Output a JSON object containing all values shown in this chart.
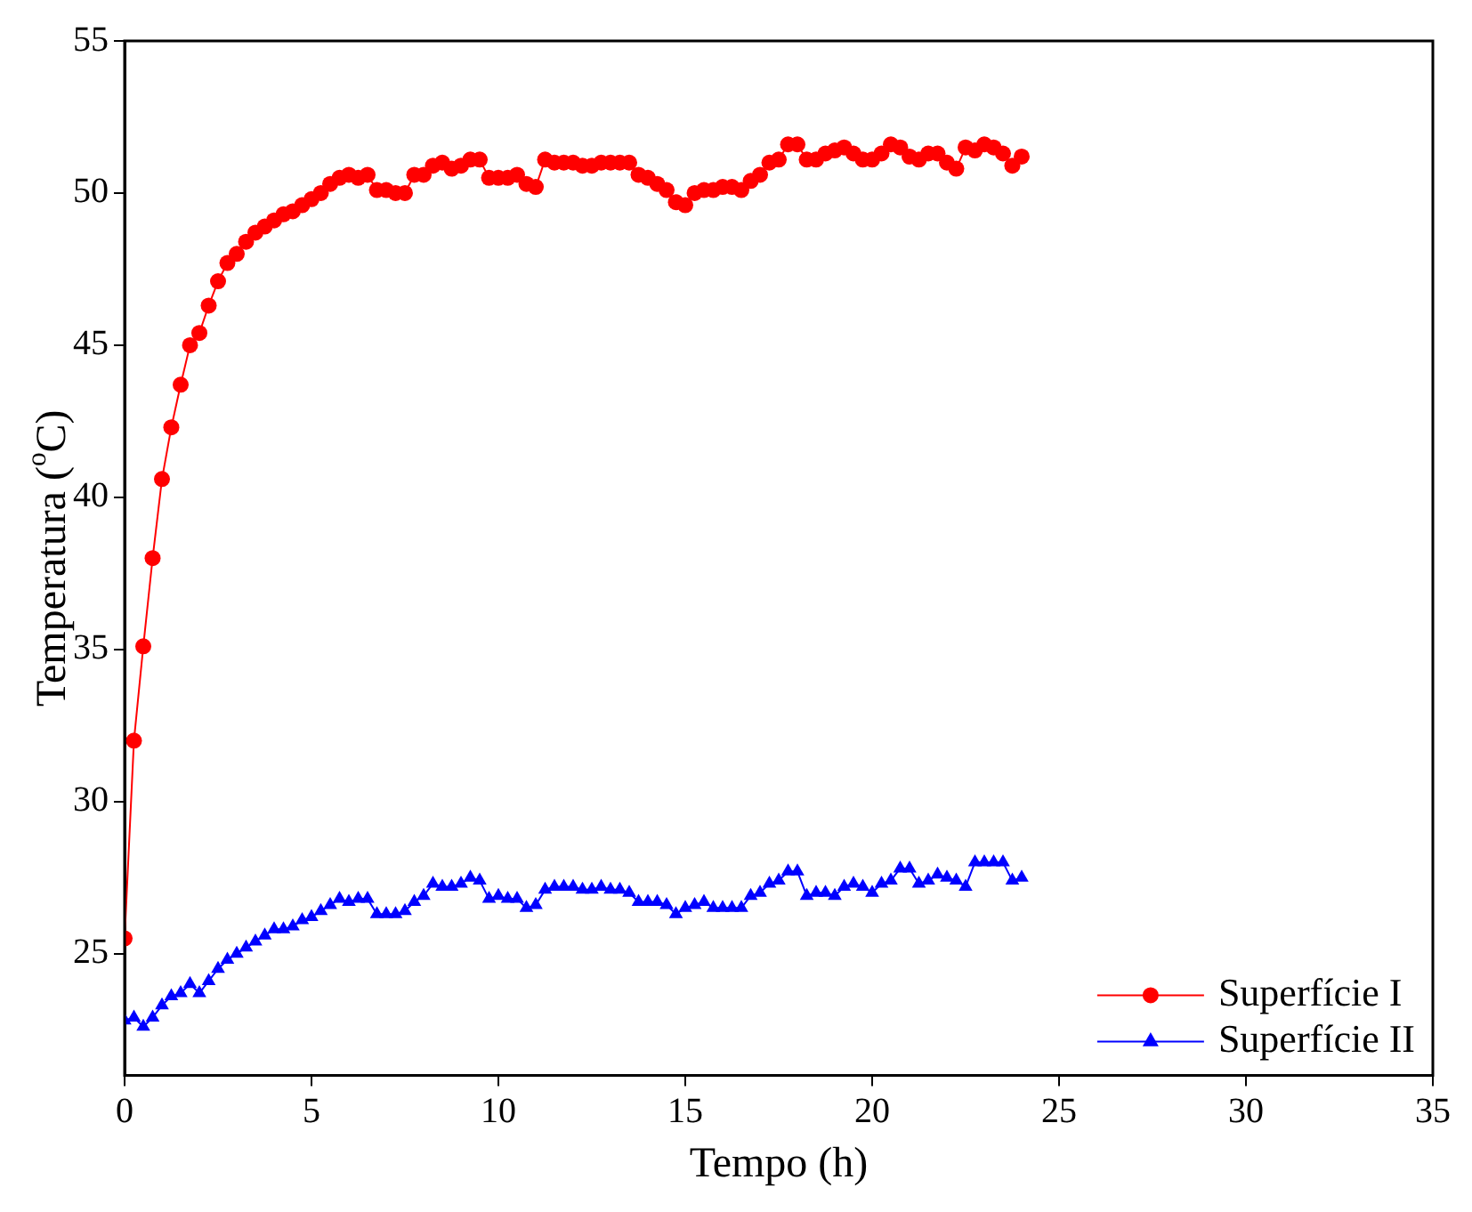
{
  "chart_data": {
    "type": "line",
    "xlabel": "Tempo (h)",
    "ylabel": "Temperatura ($^{o}$C)",
    "x": [
      0,
      0.25,
      0.5,
      0.75,
      1,
      1.25,
      1.5,
      1.75,
      2,
      2.25,
      2.5,
      2.75,
      3,
      3.25,
      3.5,
      3.75,
      4,
      4.25,
      4.5,
      4.75,
      5,
      5.25,
      5.5,
      5.75,
      6,
      6.25,
      6.5,
      6.75,
      7,
      7.25,
      7.5,
      7.75,
      8,
      8.25,
      8.5,
      8.75,
      9,
      9.25,
      9.5,
      9.75,
      10,
      10.25,
      10.5,
      10.75,
      11,
      11.25,
      11.5,
      11.75,
      12,
      12.25,
      12.5,
      12.75,
      13,
      13.25,
      13.5,
      13.75,
      14,
      14.25,
      14.5,
      14.75,
      15,
      15.25,
      15.5,
      15.75,
      16,
      16.25,
      16.5,
      16.75,
      17,
      17.25,
      17.5,
      17.75,
      18,
      18.25,
      18.5,
      18.75,
      19,
      19.25,
      19.5,
      19.75,
      20,
      20.25,
      20.5,
      20.75,
      21,
      21.25,
      21.5,
      21.75,
      22,
      22.25,
      22.5,
      22.75,
      23,
      23.25,
      23.5,
      23.75,
      24
    ],
    "series": [
      {
        "name": "Superfície I",
        "color": "#ff0000",
        "marker": "circle",
        "values": [
          25.5,
          32,
          35.1,
          38,
          40.6,
          42.3,
          43.7,
          45,
          45.4,
          46.3,
          47.1,
          47.7,
          48,
          48.4,
          48.7,
          48.9,
          49.1,
          49.3,
          49.4,
          49.6,
          49.8,
          50,
          50.3,
          50.5,
          50.6,
          50.5,
          50.6,
          50.1,
          50.1,
          50,
          50,
          50.6,
          50.6,
          50.9,
          51,
          50.8,
          50.9,
          51.1,
          51.1,
          50.5,
          50.5,
          50.5,
          50.6,
          50.3,
          50.2,
          51.1,
          51,
          51,
          51,
          50.9,
          50.9,
          51,
          51,
          51,
          51,
          50.6,
          50.5,
          50.3,
          50.1,
          49.7,
          49.6,
          50,
          50.1,
          50.1,
          50.2,
          50.2,
          50.1,
          50.4,
          50.6,
          51,
          51.1,
          51.6,
          51.6,
          51.1,
          51.1,
          51.3,
          51.4,
          51.5,
          51.3,
          51.1,
          51.1,
          51.3,
          51.6,
          51.5,
          51.2,
          51.1,
          51.3,
          51.3,
          51,
          50.8,
          51.5,
          51.4,
          51.6,
          51.5,
          51.3,
          50.9,
          51.2
        ]
      },
      {
        "name": "Superfície II",
        "color": "#0000ff",
        "marker": "triangle",
        "values": [
          22.8,
          22.9,
          22.6,
          22.9,
          23.3,
          23.6,
          23.7,
          24,
          23.7,
          24.1,
          24.5,
          24.8,
          25,
          25.2,
          25.4,
          25.6,
          25.8,
          25.8,
          25.9,
          26.1,
          26.2,
          26.4,
          26.6,
          26.8,
          26.7,
          26.8,
          26.8,
          26.3,
          26.3,
          26.3,
          26.4,
          26.7,
          26.9,
          27.3,
          27.2,
          27.2,
          27.3,
          27.5,
          27.4,
          26.8,
          26.9,
          26.8,
          26.8,
          26.5,
          26.6,
          27.1,
          27.2,
          27.2,
          27.2,
          27.1,
          27.1,
          27.2,
          27.1,
          27.1,
          27,
          26.7,
          26.7,
          26.7,
          26.6,
          26.3,
          26.5,
          26.6,
          26.7,
          26.5,
          26.5,
          26.5,
          26.5,
          26.9,
          27,
          27.3,
          27.4,
          27.7,
          27.7,
          26.9,
          27,
          27,
          26.9,
          27.2,
          27.3,
          27.2,
          27,
          27.3,
          27.4,
          27.8,
          27.8,
          27.3,
          27.4,
          27.6,
          27.5,
          27.4,
          27.2,
          28,
          28,
          28,
          28,
          27.4,
          27.5
        ]
      }
    ],
    "xlim": [
      0,
      35
    ],
    "xticks": [
      0,
      5,
      10,
      15,
      20,
      25,
      30,
      35
    ],
    "ylim": [
      21,
      55
    ],
    "yticks": [
      25,
      30,
      35,
      40,
      45,
      50,
      55
    ],
    "grid": false,
    "legend": "bottom right",
    "line_style": "solid"
  }
}
